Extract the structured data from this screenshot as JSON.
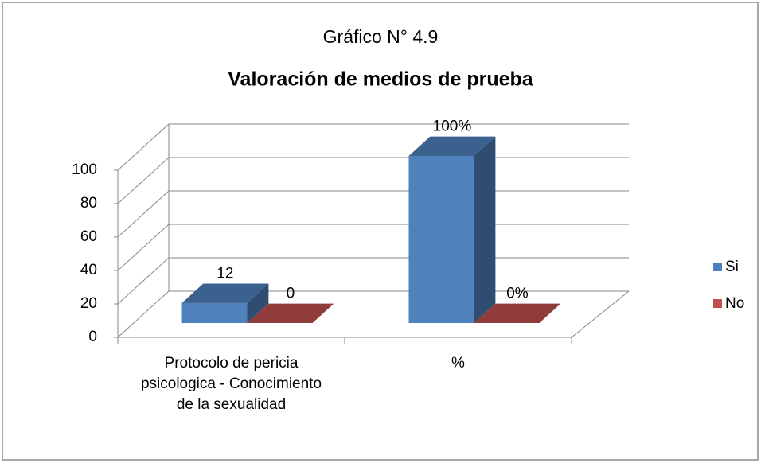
{
  "chart_data": {
    "type": "bar3d",
    "title": "Gráfico N° 4.9",
    "subtitle": "Valoración de medios de prueba",
    "categories": [
      "Protocolo de pericia psicologica - Conocimiento de la sexualidad",
      "%"
    ],
    "series": [
      {
        "name": "Si",
        "color": "#4f81bd",
        "values": [
          12,
          100
        ],
        "value_labels": [
          "12",
          "100%"
        ]
      },
      {
        "name": "No",
        "color": "#c0504d",
        "values": [
          0,
          0
        ],
        "value_labels": [
          "0",
          "0%"
        ]
      }
    ],
    "ylim": [
      0,
      100
    ],
    "yticks": [
      0,
      20,
      40,
      60,
      80,
      100
    ],
    "grid": true,
    "legend": "right"
  }
}
